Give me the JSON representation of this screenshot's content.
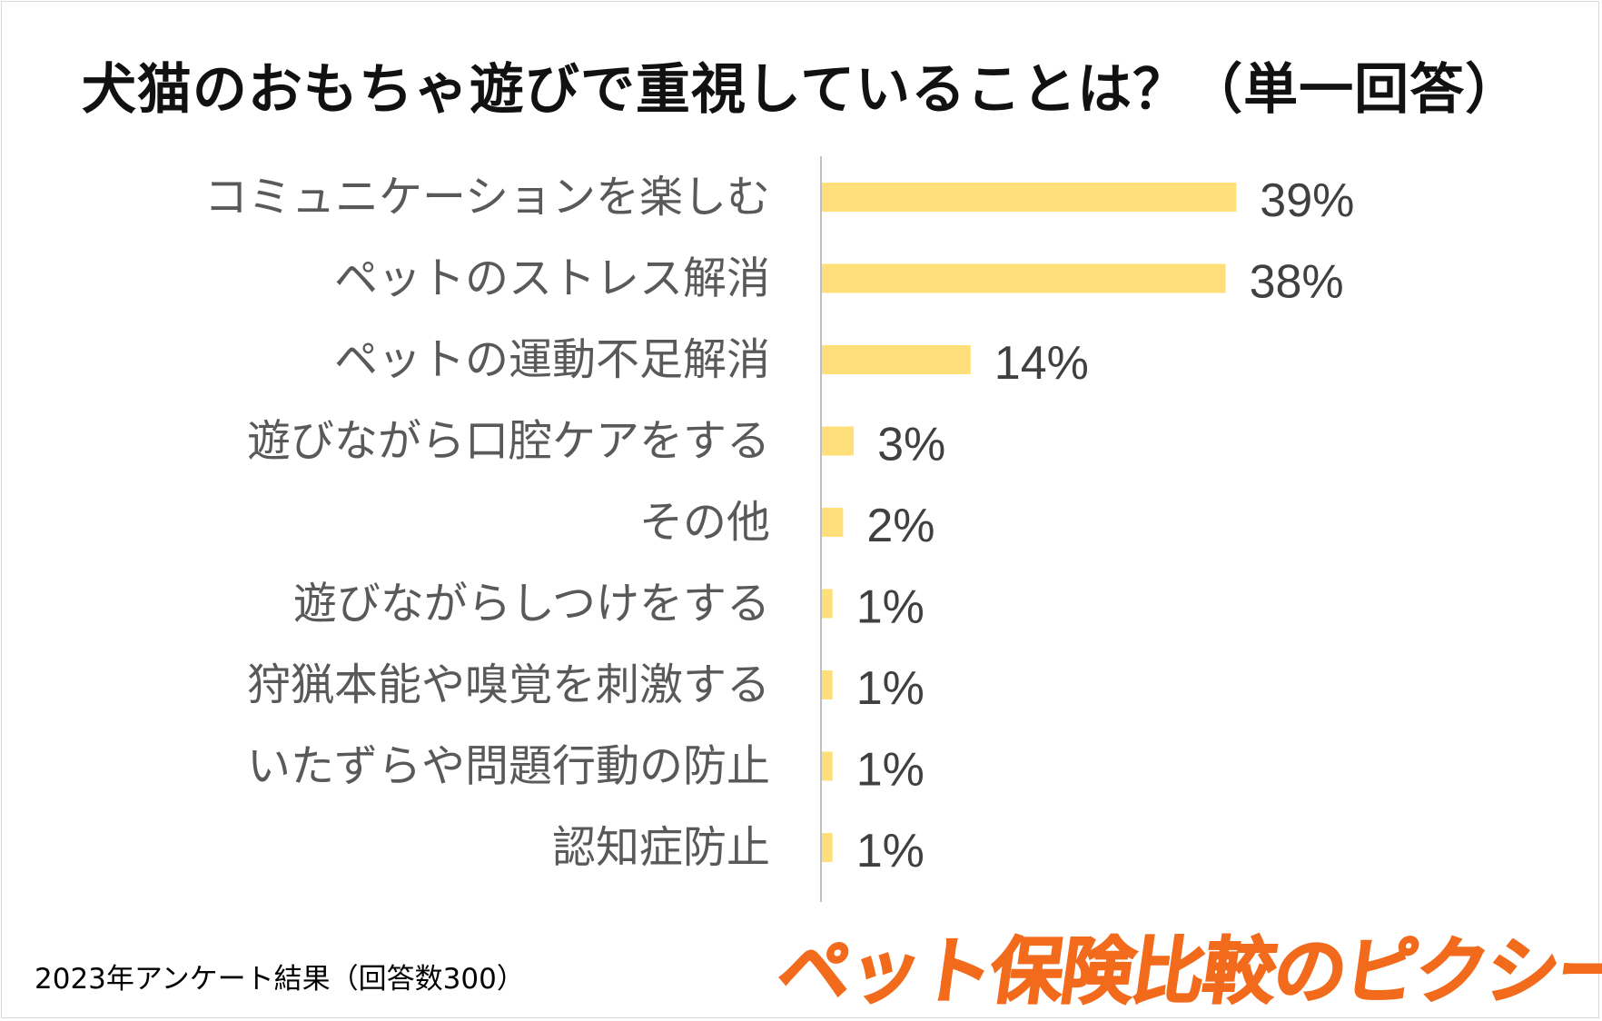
{
  "chart_data": {
    "type": "bar",
    "orientation": "horizontal",
    "title": "犬猫のおもちゃ遊びで重視していることは？（単一回答）",
    "categories": [
      "コミュニケーションを楽しむ",
      "ペットのストレス解消",
      "ペットの運動不足解消",
      "遊びながら口腔ケアをする",
      "その他",
      "遊びながらしつけをする",
      "狩猟本能や嗅覚を刺激する",
      "いたずらや問題行動の防止",
      "認知症防止"
    ],
    "values": [
      39,
      38,
      14,
      3,
      2,
      1,
      1,
      1,
      1
    ],
    "value_labels": [
      "39%",
      "38%",
      "14%",
      "3%",
      "2%",
      "1%",
      "1%",
      "1%",
      "1%"
    ],
    "unit": "%",
    "xlim": [
      0,
      100
    ],
    "xlabel": "",
    "ylabel": "",
    "grid": false,
    "legend": "none",
    "bar_color": "#ffdf7a",
    "axis_color": "#bfbfbf",
    "label_color": "#595959",
    "value_label_color": "#404040"
  },
  "footnote": "2023年アンケート結果（回答数300）",
  "brand": {
    "logo_text": "ペット保険比較のピクシー",
    "color": "#f26a1b"
  }
}
